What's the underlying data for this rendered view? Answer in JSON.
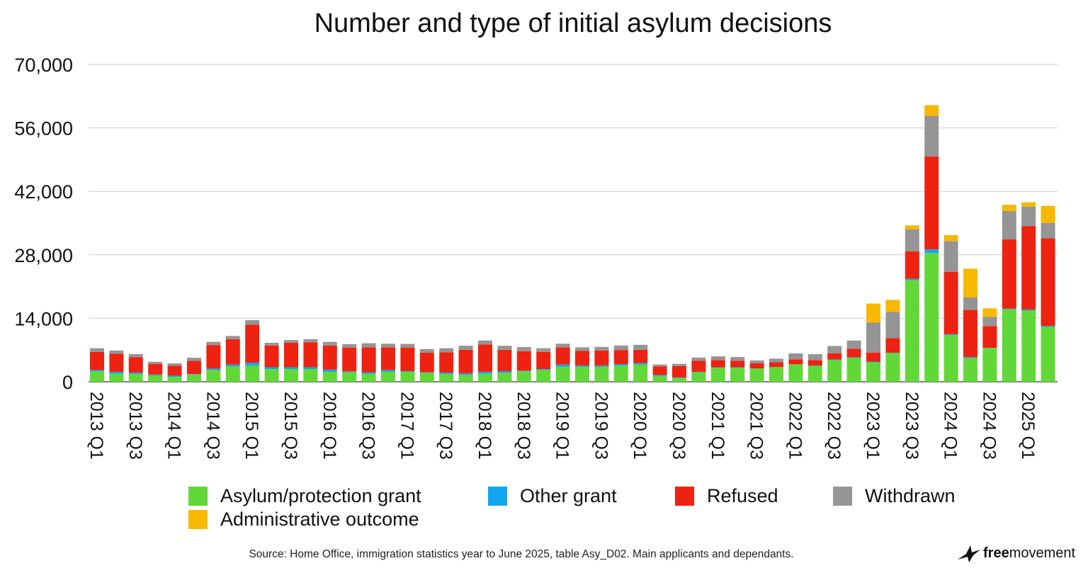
{
  "chart_data": {
    "type": "bar",
    "stacked": true,
    "title": "Number and type of initial asylum decisions",
    "xlabel": "",
    "ylabel": "",
    "ylim": [
      0,
      70000
    ],
    "yticks": [
      "0",
      "14,000",
      "28,000",
      "42,000",
      "56,000",
      "70,000"
    ],
    "ytick_values": [
      0,
      14000,
      28000,
      42000,
      56000,
      70000
    ],
    "grid": true,
    "legend_position": "bottom",
    "categories": [
      "2013 Q1",
      "2013 Q2",
      "2013 Q3",
      "2013 Q4",
      "2014 Q1",
      "2014 Q2",
      "2014 Q3",
      "2014 Q4",
      "2015 Q1",
      "2015 Q2",
      "2015 Q3",
      "2015 Q4",
      "2016 Q1",
      "2016 Q2",
      "2016 Q3",
      "2016 Q4",
      "2017 Q1",
      "2017 Q2",
      "2017 Q3",
      "2017 Q4",
      "2018 Q1",
      "2018 Q2",
      "2018 Q3",
      "2018 Q4",
      "2019 Q1",
      "2019 Q2",
      "2019 Q3",
      "2019 Q4",
      "2020 Q1",
      "2020 Q2",
      "2020 Q3",
      "2020 Q4",
      "2021 Q1",
      "2021 Q2",
      "2021 Q3",
      "2021 Q4",
      "2022 Q1",
      "2022 Q2",
      "2022 Q3",
      "2022 Q4",
      "2023 Q1",
      "2023 Q2",
      "2023 Q3",
      "2023 Q4",
      "2024 Q1",
      "2024 Q2",
      "2024 Q3",
      "2024 Q4",
      "2025 Q1",
      "2025 Q2"
    ],
    "tick_labels": [
      "2013 Q1",
      "2013 Q3",
      "2014 Q1",
      "2014 Q3",
      "2015 Q1",
      "2015 Q3",
      "2016 Q1",
      "2016 Q3",
      "2017 Q1",
      "2017 Q3",
      "2018 Q1",
      "2018 Q3",
      "2019 Q1",
      "2019 Q3",
      "2020 Q1",
      "2020 Q3",
      "2021 Q1",
      "2021 Q3",
      "2022 Q1",
      "2022 Q3",
      "2023 Q1",
      "2023 Q3",
      "2024 Q1",
      "2024 Q3",
      "2025 Q1"
    ],
    "series": [
      {
        "name": "Asylum/protection grant",
        "color": "#62d838",
        "values": [
          2300,
          1800,
          1700,
          1400,
          1100,
          1600,
          2600,
          3400,
          3600,
          2800,
          2800,
          2800,
          2200,
          2100,
          1800,
          2200,
          2200,
          2000,
          1700,
          1500,
          1800,
          2000,
          2300,
          2600,
          3300,
          3300,
          3300,
          3600,
          3800,
          1300,
          850,
          2100,
          3100,
          3100,
          2900,
          3200,
          3800,
          3500,
          4800,
          5300,
          4300,
          6350,
          22400,
          28400,
          10300,
          5250,
          7450,
          16000,
          15700,
          12100
        ]
      },
      {
        "name": "Other grant",
        "color": "#12a6f0",
        "values": [
          300,
          400,
          300,
          200,
          250,
          100,
          300,
          400,
          600,
          400,
          400,
          400,
          500,
          200,
          300,
          400,
          150,
          100,
          300,
          350,
          400,
          350,
          150,
          200,
          500,
          300,
          300,
          300,
          350,
          200,
          100,
          100,
          100,
          100,
          50,
          50,
          50,
          100,
          100,
          100,
          150,
          50,
          300,
          800,
          200,
          200,
          50,
          150,
          250,
          250
        ]
      },
      {
        "name": "Refused",
        "color": "#ee2210",
        "values": [
          4000,
          4000,
          3400,
          2300,
          2200,
          2900,
          5200,
          5600,
          8400,
          4800,
          5400,
          5500,
          5300,
          5200,
          5500,
          5000,
          5200,
          4300,
          4500,
          5200,
          6000,
          4700,
          4300,
          3800,
          3800,
          3200,
          3300,
          3100,
          2900,
          1900,
          2500,
          2450,
          1600,
          1450,
          1150,
          1050,
          1100,
          1150,
          1400,
          1900,
          2000,
          3200,
          6100,
          20500,
          13750,
          10400,
          4800,
          15250,
          18400,
          19300
        ]
      },
      {
        "name": "Withdrawn",
        "color": "#959595",
        "values": [
          800,
          700,
          700,
          500,
          500,
          700,
          700,
          700,
          1000,
          600,
          600,
          700,
          800,
          800,
          900,
          800,
          800,
          800,
          900,
          900,
          900,
          900,
          900,
          800,
          800,
          800,
          800,
          1000,
          1100,
          400,
          500,
          700,
          800,
          800,
          600,
          800,
          1300,
          1350,
          1600,
          1800,
          6600,
          5800,
          4800,
          9000,
          6800,
          2750,
          2000,
          6250,
          4300,
          3400
        ]
      },
      {
        "name": "Administrative outcome",
        "color": "#f8b800",
        "values": [
          0,
          0,
          0,
          0,
          0,
          0,
          0,
          0,
          0,
          0,
          0,
          0,
          0,
          0,
          0,
          0,
          0,
          0,
          0,
          0,
          0,
          0,
          0,
          0,
          0,
          0,
          0,
          0,
          0,
          0,
          0,
          0,
          0,
          0,
          0,
          0,
          0,
          0,
          0,
          0,
          4200,
          2650,
          900,
          2300,
          1300,
          6350,
          1900,
          1400,
          950,
          3750
        ]
      }
    ]
  },
  "source": "Source: Home Office, immigration statistics year to June 2025, table Asy_D02. Main applicants and dependants.",
  "logo": {
    "text_bold": "free",
    "text_regular": "movement",
    "icon": "bird-icon"
  }
}
